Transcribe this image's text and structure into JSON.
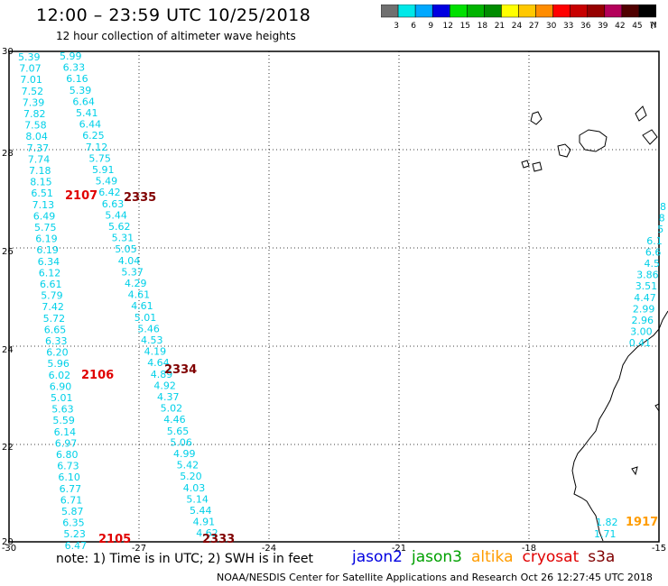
{
  "header": {
    "title": "12:00 – 23:59 UTC 10/25/2018",
    "subtitle": "12 hour collection of altimeter wave heights"
  },
  "legend": {
    "labels": [
      "3",
      "6",
      "9",
      "12",
      "15",
      "18",
      "21",
      "24",
      "27",
      "30",
      "33",
      "36",
      "39",
      "42",
      "45",
      "70",
      "(ft)"
    ],
    "colors": [
      "#707070",
      "#00e8e8",
      "#00a8ff",
      "#0000e0",
      "#00e000",
      "#00b400",
      "#008c00",
      "#ffff00",
      "#ffc800",
      "#ff8c00",
      "#ff0000",
      "#c80000",
      "#960000",
      "#b4005a",
      "#500000",
      "#000000"
    ]
  },
  "axes": {
    "lon_labels": [
      "-30",
      "-27",
      "-24",
      "-21",
      "-18",
      "-15"
    ],
    "lat_labels": [
      "30",
      "28",
      "26",
      "24",
      "22",
      "20"
    ]
  },
  "tracks": {
    "color_swh": "#00d0e8",
    "color_time": "#e00000",
    "color_time2": "#800000",
    "track_a": [
      "5.39",
      "7.07",
      "7.01",
      "7.52",
      "7.39",
      "7.82",
      "7.58",
      "8.04",
      "7.37",
      "7.74",
      "7.18",
      "8.15",
      "6.51",
      "7.13",
      "6.49",
      "5.75",
      "6.19",
      "6.19",
      "6.34",
      "6.12",
      "6.61",
      "5.79",
      "7.42",
      "5.72",
      "6.65",
      "6.33",
      "6.20",
      "5.96",
      "6.02",
      "6.90",
      "5.01",
      "5.63",
      "5.59",
      "6.14",
      "6.97",
      "6.80",
      "6.73",
      "6.10",
      "6.77",
      "6.71",
      "5.87",
      "6.35",
      "5.23",
      "6.47"
    ],
    "track_b": [
      "5.99",
      "6.33",
      "6.16",
      "5.39",
      "6.64",
      "5.41",
      "6.44",
      "6.25",
      "7.12",
      "5.75",
      "5.91",
      "5.49",
      "6.42",
      "6.63",
      "5.44",
      "5.62",
      "5.31",
      "5.05",
      "4.04",
      "5.37",
      "4.29",
      "4.61",
      "4.61",
      "5.01",
      "5.46",
      "4.53",
      "4.19",
      "4.64",
      "4.89",
      "4.92",
      "4.37",
      "5.02",
      "4.46",
      "5.65",
      "5.06",
      "4.99",
      "5.42",
      "5.20",
      "4.03",
      "5.14",
      "5.44",
      "4.91",
      "4.62"
    ],
    "track_c": [
      "8",
      "8",
      "5",
      "6.1",
      "6.6",
      "4.5",
      "3.86",
      "3.51",
      "4.47",
      "2.99",
      "2.96",
      "3.00",
      "0.41"
    ],
    "track_d": [
      "1.82",
      "1.71"
    ],
    "times": [
      {
        "t": "2107",
        "c": "#e00000"
      },
      {
        "t": "2335",
        "c": "#800000"
      },
      {
        "t": "2106",
        "c": "#e00000"
      },
      {
        "t": "2334",
        "c": "#800000"
      },
      {
        "t": "2105",
        "c": "#e00000"
      },
      {
        "t": "2333",
        "c": "#800000"
      },
      {
        "t": "1917",
        "c": "#ff9c00"
      }
    ]
  },
  "footer": {
    "note": "note: 1) Time is in UTC; 2) SWH is in feet",
    "satellites": [
      {
        "name": "jason2",
        "color": "#0000e0"
      },
      {
        "name": "jason3",
        "color": "#00a000"
      },
      {
        "name": "altika",
        "color": "#ff9c00"
      },
      {
        "name": "cryosat",
        "color": "#e00000"
      },
      {
        "name": "s3a",
        "color": "#800000"
      }
    ],
    "credit": "NOAA/NESDIS Center for Satellite Applications and Research    Oct 26 12:27:45 UTC 2018"
  }
}
